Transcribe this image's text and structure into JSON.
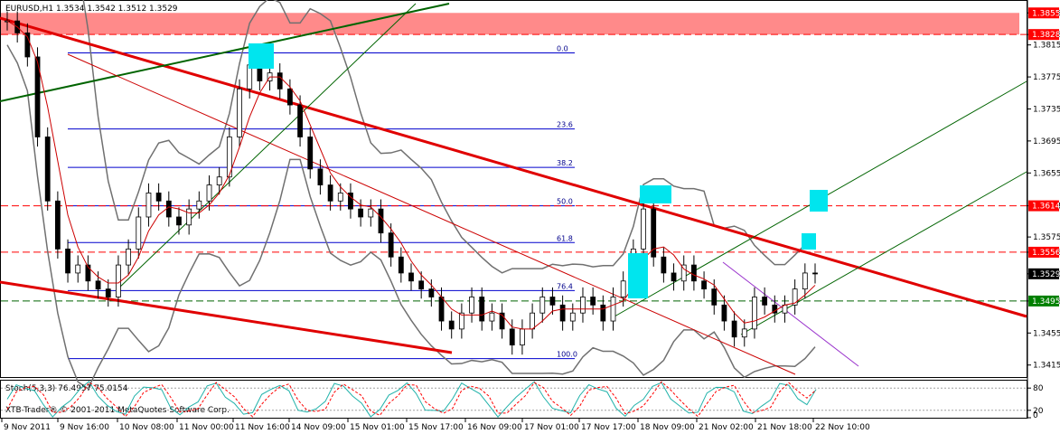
{
  "chart_data": [
    {
      "type": "line",
      "header": "EURUSD,H1  1.3534 1.3542 1.3512 1.3529",
      "symbol": "EURUSD",
      "timeframe": "H1",
      "ohlc": [
        1.3534,
        1.3542,
        1.3512,
        1.3529
      ],
      "ylim": [
        1.34,
        1.387
      ],
      "y_ticks": [
        "1.3855",
        "1.3828",
        "1.3815",
        "1.3775",
        "1.3735",
        "1.3695",
        "1.3655",
        "1.3614",
        "1.3575",
        "1.3556",
        "1.3529",
        "1.3495",
        "1.3455",
        "1.3415"
      ],
      "price_tags": [
        {
          "value": 1.3855,
          "label": "1.3855",
          "color": "#ff0000"
        },
        {
          "value": 1.3828,
          "label": "1.3828",
          "color": "#ff0000"
        },
        {
          "value": 1.3614,
          "label": "1.3614",
          "color": "#ff0000"
        },
        {
          "value": 1.3556,
          "label": "1.3556",
          "color": "#ff0000"
        },
        {
          "value": 1.3529,
          "label": "1.3529",
          "color": "#000000"
        },
        {
          "value": 1.3495,
          "label": "1.3495",
          "color": "#008000"
        }
      ],
      "fib_levels": [
        {
          "label": "0.0",
          "value": 1.3805
        },
        {
          "label": "23.6",
          "value": 1.371
        },
        {
          "label": "38.2",
          "value": 1.3662
        },
        {
          "label": "50.0",
          "value": 1.3614
        },
        {
          "label": "61.8",
          "value": 1.3568
        },
        {
          "label": "76.4",
          "value": 1.3508
        },
        {
          "label": "100.0",
          "value": 1.3423
        }
      ],
      "resistance_zone": [
        1.3828,
        1.3855
      ],
      "x_tick_labels": [
        "9 Nov 2011",
        "9 Nov 16:00",
        "10 Nov 08:00",
        "11 Nov 00:00",
        "11 Nov 16:00",
        "14 Nov 09:00",
        "15 Nov 01:00",
        "15 Nov 17:00",
        "16 Nov 09:00",
        "17 Nov 01:00",
        "17 Nov 17:00",
        "18 Nov 09:00",
        "21 Nov 02:00",
        "21 Nov 18:00",
        "22 Nov 10:00"
      ],
      "close_series": [
        1.3845,
        1.383,
        1.38,
        1.37,
        1.362,
        1.356,
        1.353,
        1.354,
        1.352,
        1.351,
        1.35,
        1.354,
        1.356,
        1.36,
        1.363,
        1.362,
        1.36,
        1.359,
        1.361,
        1.362,
        1.364,
        1.365,
        1.37,
        1.376,
        1.379,
        1.377,
        1.378,
        1.376,
        1.374,
        1.37,
        1.366,
        1.364,
        1.362,
        1.363,
        1.361,
        1.36,
        1.361,
        1.358,
        1.355,
        1.353,
        1.352,
        1.351,
        1.35,
        1.347,
        1.346,
        1.348,
        1.35,
        1.347,
        1.348,
        1.346,
        1.344,
        1.346,
        1.348,
        1.35,
        1.349,
        1.347,
        1.348,
        1.35,
        1.349,
        1.347,
        1.35,
        1.352,
        1.356,
        1.361,
        1.355,
        1.353,
        1.352,
        1.354,
        1.352,
        1.351,
        1.349,
        1.347,
        1.345,
        1.346,
        1.35,
        1.349,
        1.348,
        1.349,
        1.351,
        1.353,
        1.3529
      ]
    },
    {
      "type": "line",
      "header": "Stoch(5,3,3) 76.4957 75.0154",
      "name": "Stoch(5,3,3)",
      "main_value": 76.4957,
      "signal_value": 75.0154,
      "ylim": [
        0,
        100
      ],
      "y_ticks": [
        "80",
        "20",
        "0"
      ],
      "levels": [
        80,
        20
      ]
    }
  ],
  "footer": "XTB-Trader® © 2001-2011 MetaQuotes Software Corp."
}
